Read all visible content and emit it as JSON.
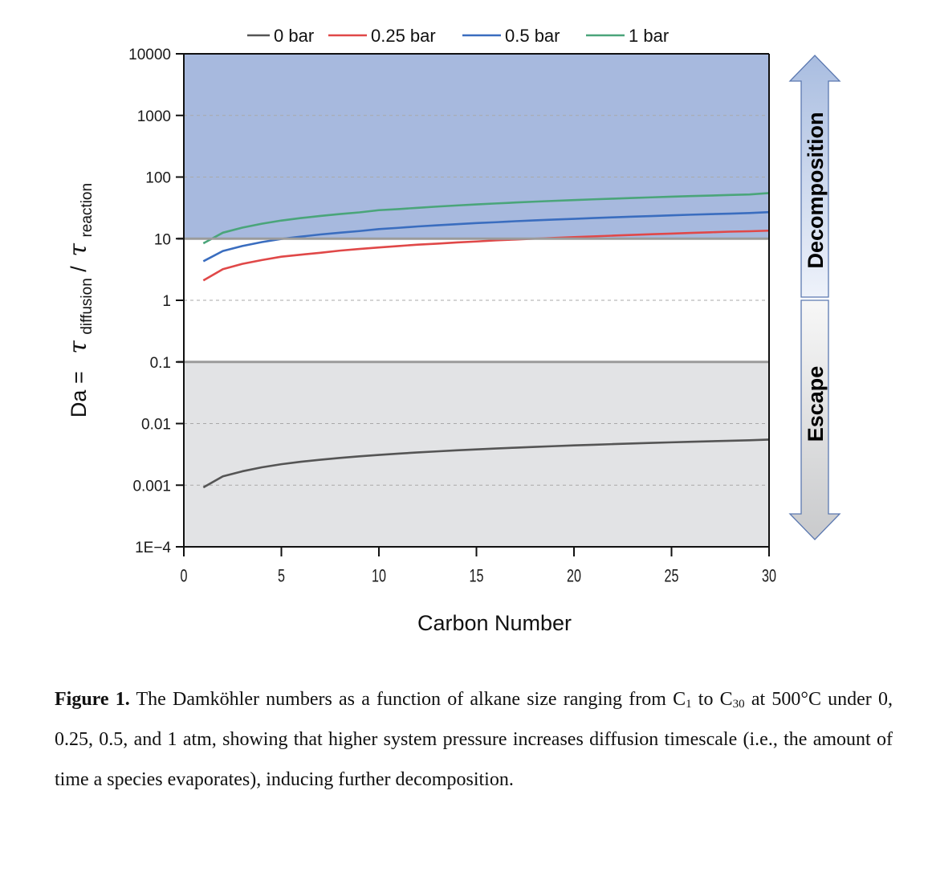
{
  "chart_data": {
    "type": "line",
    "title": "",
    "xlabel": "Carbon Number",
    "ylabel": {
      "prefix": "Da =",
      "tau": "τ",
      "sub1": "diffusion",
      "slash": "/",
      "sub2": "reaction"
    },
    "yscale": "log",
    "xlim": [
      0,
      30
    ],
    "ylim": [
      0.0001,
      10000
    ],
    "x_ticks": [
      "0",
      "5",
      "10",
      "15",
      "20",
      "25",
      "30"
    ],
    "y_ticks": [
      "10000",
      "1000",
      "100",
      "10",
      "1",
      "0.1",
      "0.01",
      "0.001",
      "1E−4"
    ],
    "grid": "horizontal dashed",
    "legend_position": "top",
    "regions": [
      {
        "name": "Decomposition",
        "from": 10,
        "to": 10000,
        "color": "#a7b9de"
      },
      {
        "name": "Escape",
        "from": 0.0001,
        "to": 0.1,
        "color": "#e2e3e5"
      }
    ],
    "threshold_lines": [
      10,
      0.1
    ],
    "x": [
      1,
      2,
      3,
      4,
      5,
      6,
      7,
      8,
      9,
      10,
      11,
      12,
      13,
      14,
      15,
      16,
      17,
      18,
      19,
      20,
      21,
      22,
      23,
      24,
      25,
      26,
      27,
      28,
      29,
      30
    ],
    "series": [
      {
        "name": "0 bar",
        "color": "#555555",
        "values": [
          0.00092,
          0.00139,
          0.00168,
          0.00195,
          0.00219,
          0.0024,
          0.00259,
          0.00277,
          0.00294,
          0.0031,
          0.00325,
          0.0034,
          0.00354,
          0.00368,
          0.00381,
          0.00394,
          0.00406,
          0.00418,
          0.0043,
          0.00442,
          0.00453,
          0.00464,
          0.00475,
          0.00486,
          0.00496,
          0.00506,
          0.00516,
          0.00526,
          0.00536,
          0.0055
        ]
      },
      {
        "name": "0.25 bar",
        "color": "#e04848",
        "values": [
          2.1,
          3.2,
          3.9,
          4.5,
          5.1,
          5.5,
          5.9,
          6.4,
          6.8,
          7.2,
          7.6,
          8.0,
          8.3,
          8.7,
          9.0,
          9.4,
          9.7,
          10.0,
          10.3,
          10.6,
          10.9,
          11.2,
          11.5,
          11.8,
          12.1,
          12.4,
          12.7,
          13.0,
          13.2,
          13.5
        ]
      },
      {
        "name": "0.5 bar",
        "color": "#3a6dbf",
        "values": [
          4.3,
          6.3,
          7.6,
          8.8,
          9.9,
          10.8,
          11.7,
          12.5,
          13.3,
          14.3,
          15.0,
          15.8,
          16.5,
          17.2,
          17.9,
          18.5,
          19.2,
          19.8,
          20.4,
          21.0,
          21.6,
          22.2,
          22.8,
          23.3,
          23.9,
          24.5,
          25.0,
          25.5,
          26.1,
          27.0
        ]
      },
      {
        "name": "1 bar",
        "color": "#4aa57a",
        "values": [
          8.4,
          12.5,
          15.1,
          17.5,
          19.7,
          21.6,
          23.4,
          25.1,
          26.7,
          29.0,
          30.2,
          31.7,
          33.2,
          34.6,
          36.0,
          37.3,
          38.6,
          39.9,
          41.1,
          42.3,
          43.5,
          44.6,
          45.8,
          46.9,
          48.0,
          49.1,
          50.1,
          51.2,
          52.2,
          55.0
        ]
      }
    ],
    "side_arrow": {
      "up_label": "Decomposition",
      "down_label": "Escape"
    }
  },
  "caption": {
    "label": "Figure 1.",
    "text_a": " The Damköhler numbers as a function of alkane size ranging from C",
    "sub_a": "1",
    "text_b": " to C",
    "sub_b": "30",
    "text_c": " at 500°C under 0, 0.25, 0.5, and 1 atm, showing that higher system pressure increases diffusion timescale (i.e., the amount of time a species evaporates), inducing further decomposition."
  }
}
